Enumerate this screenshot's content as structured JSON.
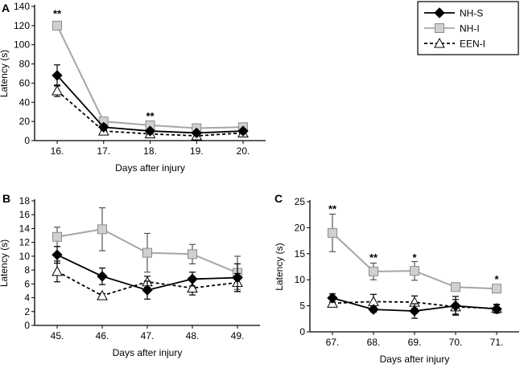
{
  "figure": {
    "legend": [
      {
        "name": "NH-S",
        "marker": "diamond",
        "line": "solid",
        "color": "#000000"
      },
      {
        "name": "NH-I",
        "marker": "square",
        "line": "solid",
        "color": "#a6a6a6"
      },
      {
        "name": "EEN-I",
        "marker": "triangle",
        "line": "dashed",
        "color": "#000000"
      }
    ]
  },
  "chart_data": [
    {
      "panel": "A",
      "type": "line",
      "title": "",
      "xlabel": "Days after injury",
      "ylabel": "Latency (s)",
      "categories": [
        "16.",
        "17.",
        "18.",
        "19.",
        "20."
      ],
      "ylim": [
        0,
        140
      ],
      "yticks": [
        0,
        20,
        40,
        60,
        80,
        100,
        120,
        140
      ],
      "series": [
        {
          "name": "NH-S",
          "values": [
            68,
            14,
            10,
            8,
            10
          ],
          "errors": [
            11,
            3,
            2,
            1,
            2
          ]
        },
        {
          "name": "NH-I",
          "values": [
            120,
            20,
            16,
            13,
            14
          ],
          "errors": [
            0,
            2,
            2,
            2,
            2
          ]
        },
        {
          "name": "EEN-I",
          "values": [
            52,
            10,
            7,
            5,
            8
          ],
          "errors": [
            6,
            2,
            2,
            1,
            2
          ]
        }
      ],
      "annotations": [
        {
          "category": "16.",
          "text": "**",
          "at": 132
        },
        {
          "category": "18.",
          "text": "**",
          "at": 25
        }
      ]
    },
    {
      "panel": "B",
      "type": "line",
      "title": "",
      "xlabel": "Days after injury",
      "ylabel": "Latency (s)",
      "categories": [
        "45.",
        "46.",
        "47.",
        "48.",
        "49."
      ],
      "ylim": [
        0,
        18
      ],
      "yticks": [
        0,
        2,
        4,
        6,
        8,
        10,
        12,
        14,
        16,
        18
      ],
      "series": [
        {
          "name": "NH-S",
          "values": [
            10.2,
            7.1,
            5.1,
            6.7,
            6.9
          ],
          "errors": [
            1.2,
            1.2,
            1.3,
            1.0,
            2.0
          ]
        },
        {
          "name": "NH-I",
          "values": [
            12.8,
            13.9,
            10.5,
            10.3,
            7.6
          ],
          "errors": [
            1.4,
            3.1,
            2.8,
            1.4,
            2.4
          ]
        },
        {
          "name": "EEN-I",
          "values": [
            7.8,
            4.3,
            6.3,
            5.4,
            6.2
          ],
          "errors": [
            1.5,
            0.3,
            0.8,
            1.0,
            1.3
          ]
        }
      ],
      "annotations": []
    },
    {
      "panel": "C",
      "type": "line",
      "title": "",
      "xlabel": "Days after injury",
      "ylabel": "Latency (s)",
      "categories": [
        "67.",
        "68.",
        "69.",
        "70.",
        "71."
      ],
      "ylim": [
        0,
        25
      ],
      "yticks": [
        0,
        5,
        10,
        15,
        20,
        25
      ],
      "series": [
        {
          "name": "NH-S",
          "values": [
            6.5,
            4.3,
            4.0,
            5.0,
            4.4
          ],
          "errors": [
            0.8,
            0.5,
            1.4,
            1.8,
            0.8
          ]
        },
        {
          "name": "NH-I",
          "values": [
            19.0,
            11.6,
            11.7,
            8.6,
            8.3
          ],
          "errors": [
            3.6,
            1.6,
            1.8,
            0.4,
            0.4
          ]
        },
        {
          "name": "EEN-I",
          "values": [
            5.5,
            5.8,
            5.7,
            4.8,
            4.5
          ],
          "errors": [
            0.6,
            1.4,
            1.2,
            1.4,
            0.8
          ]
        }
      ],
      "annotations": [
        {
          "category": "67.",
          "text": "**",
          "at": 23.5
        },
        {
          "category": "68.",
          "text": "**",
          "at": 14.2
        },
        {
          "category": "69.",
          "text": "*",
          "at": 14.2
        },
        {
          "category": "71.",
          "text": "*",
          "at": 10.0
        }
      ]
    }
  ]
}
